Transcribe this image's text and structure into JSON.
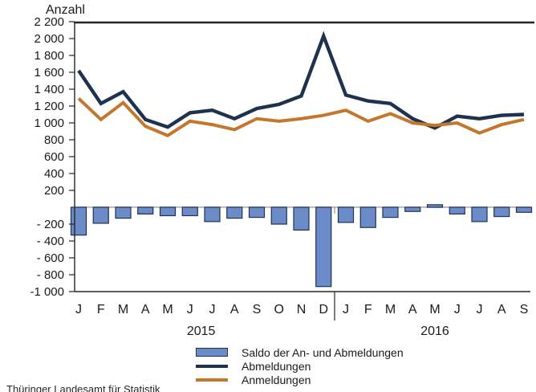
{
  "header": {
    "title": "Anzahl"
  },
  "footer": {
    "source": "Thüringer Landesamt für Statistik"
  },
  "legend": {
    "items": [
      {
        "label": "Saldo der An- und Abmeldungen",
        "type": "bar"
      },
      {
        "label": "Abmeldungen",
        "type": "line"
      },
      {
        "label": "Anmeldungen",
        "type": "line"
      }
    ]
  },
  "chart_data": {
    "type": "combo: bar + line",
    "title": "Anzahl",
    "categories": [
      "J",
      "F",
      "M",
      "A",
      "M",
      "J",
      "J",
      "A",
      "S",
      "O",
      "N",
      "D",
      "J",
      "F",
      "M",
      "A",
      "M",
      "J",
      "J",
      "A",
      "S"
    ],
    "year_groups": [
      {
        "label": "2015",
        "months": 12
      },
      {
        "label": "2016",
        "months": 9
      }
    ],
    "y_axis": {
      "min": -1000,
      "max": 2200,
      "tick_step": 200,
      "grid": "zero-line only",
      "ticks": [
        {
          "value": 2200,
          "label": "2 200"
        },
        {
          "value": 2000,
          "label": "2 000"
        },
        {
          "value": 1800,
          "label": "1 800"
        },
        {
          "value": 1600,
          "label": "1 600"
        },
        {
          "value": 1400,
          "label": "1 400"
        },
        {
          "value": 1200,
          "label": "1 200"
        },
        {
          "value": 1000,
          "label": "1 000"
        },
        {
          "value": 800,
          "label": "800"
        },
        {
          "value": 600,
          "label": "600"
        },
        {
          "value": 400,
          "label": "400"
        },
        {
          "value": 200,
          "label": "200"
        },
        {
          "value": -200,
          "label": "- 200"
        },
        {
          "value": -400,
          "label": "- 400"
        },
        {
          "value": -600,
          "label": "- 600"
        },
        {
          "value": -800,
          "label": "- 800"
        },
        {
          "value": -1000,
          "label": "-1 000"
        }
      ]
    },
    "legend_position": "bottom",
    "series": [
      {
        "name": "Saldo der An- und Abmeldungen",
        "type": "bar",
        "values": [
          -330,
          -190,
          -130,
          -80,
          -100,
          -100,
          -170,
          -130,
          -120,
          -200,
          -270,
          -940,
          -180,
          -240,
          -120,
          -50,
          30,
          -80,
          -170,
          -110,
          -60
        ]
      },
      {
        "name": "Abmeldungen",
        "type": "line",
        "values": [
          1620,
          1230,
          1370,
          1040,
          950,
          1120,
          1150,
          1050,
          1170,
          1220,
          1320,
          2030,
          1330,
          1260,
          1230,
          1050,
          940,
          1080,
          1050,
          1090,
          1100
        ]
      },
      {
        "name": "Anmeldungen",
        "type": "line",
        "values": [
          1290,
          1040,
          1240,
          960,
          850,
          1020,
          980,
          920,
          1050,
          1020,
          1050,
          1090,
          1150,
          1020,
          1110,
          1000,
          970,
          1000,
          880,
          980,
          1040
        ]
      }
    ],
    "colors": {
      "saldo_fill": "#6c8bc9",
      "saldo_border": "#1f3350",
      "abmeldungen": "#1e3250",
      "anmeldungen": "#c4762c",
      "axis": "#262626",
      "zero_line": "#a6a6a6",
      "text": "#1a1a1a"
    }
  }
}
